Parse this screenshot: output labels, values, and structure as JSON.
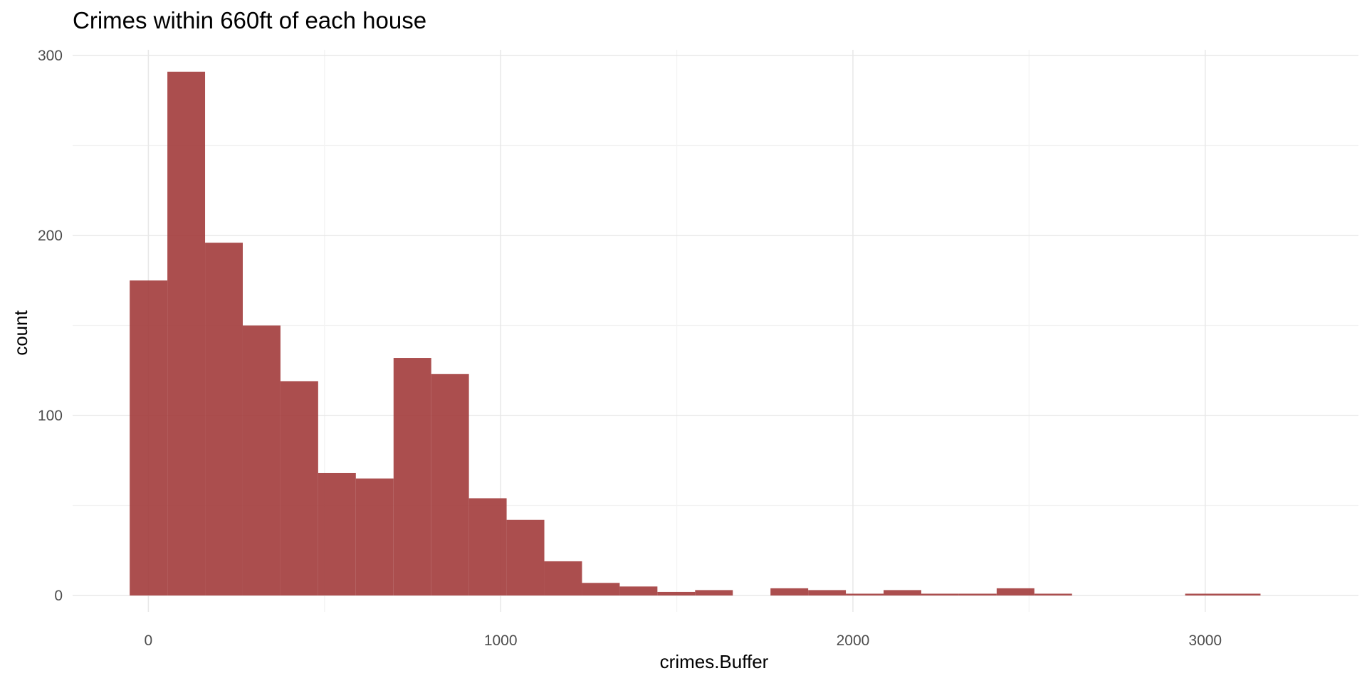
{
  "chart_data": {
    "type": "bar",
    "subtype": "histogram",
    "title": "Crimes within 660ft of each house",
    "xlabel": "crimes.Buffer",
    "ylabel": "count",
    "xlim": [
      -215,
      3435
    ],
    "ylim": [
      -15,
      300
    ],
    "x_ticks": [
      0,
      1000,
      2000,
      3000
    ],
    "x_tick_labels": [
      "0",
      "1000",
      "2000",
      "3000"
    ],
    "y_ticks": [
      0,
      100,
      200,
      300
    ],
    "y_tick_labels": [
      "0",
      "100",
      "200",
      "300"
    ],
    "grid": true,
    "bar_color": "#a23b3b",
    "bar_opacity": 0.9,
    "bin_width": 107,
    "bins": [
      {
        "x0": -53,
        "x1": 54,
        "count": 175
      },
      {
        "x0": 54,
        "x1": 161,
        "count": 291
      },
      {
        "x0": 161,
        "x1": 268,
        "count": 196
      },
      {
        "x0": 268,
        "x1": 375,
        "count": 150
      },
      {
        "x0": 375,
        "x1": 482,
        "count": 119
      },
      {
        "x0": 482,
        "x1": 589,
        "count": 68
      },
      {
        "x0": 589,
        "x1": 696,
        "count": 65
      },
      {
        "x0": 696,
        "x1": 803,
        "count": 132
      },
      {
        "x0": 803,
        "x1": 910,
        "count": 123
      },
      {
        "x0": 910,
        "x1": 1017,
        "count": 54
      },
      {
        "x0": 1017,
        "x1": 1124,
        "count": 42
      },
      {
        "x0": 1124,
        "x1": 1231,
        "count": 19
      },
      {
        "x0": 1231,
        "x1": 1338,
        "count": 7
      },
      {
        "x0": 1338,
        "x1": 1445,
        "count": 5
      },
      {
        "x0": 1445,
        "x1": 1552,
        "count": 2
      },
      {
        "x0": 1552,
        "x1": 1659,
        "count": 3
      },
      {
        "x0": 1659,
        "x1": 1766,
        "count": 0
      },
      {
        "x0": 1766,
        "x1": 1873,
        "count": 4
      },
      {
        "x0": 1873,
        "x1": 1980,
        "count": 3
      },
      {
        "x0": 1980,
        "x1": 2087,
        "count": 1
      },
      {
        "x0": 2087,
        "x1": 2194,
        "count": 3
      },
      {
        "x0": 2194,
        "x1": 2301,
        "count": 1
      },
      {
        "x0": 2301,
        "x1": 2408,
        "count": 1
      },
      {
        "x0": 2408,
        "x1": 2515,
        "count": 4
      },
      {
        "x0": 2515,
        "x1": 2622,
        "count": 1
      },
      {
        "x0": 2622,
        "x1": 2729,
        "count": 0
      },
      {
        "x0": 2729,
        "x1": 2836,
        "count": 0
      },
      {
        "x0": 2836,
        "x1": 2943,
        "count": 0
      },
      {
        "x0": 2943,
        "x1": 3050,
        "count": 1
      },
      {
        "x0": 3050,
        "x1": 3157,
        "count": 1
      }
    ]
  }
}
